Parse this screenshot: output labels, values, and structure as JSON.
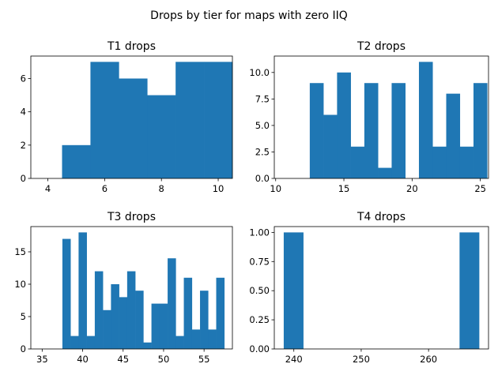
{
  "figure": {
    "suptitle": "Drops by tier for maps with zero IIQ",
    "bar_color": "#1f77b4"
  },
  "chart_data": [
    {
      "type": "bar",
      "title": "T1 drops",
      "xlabel": "",
      "ylabel": "",
      "bin_edges": [
        4.5,
        5.5,
        6.5,
        7.5,
        8.5,
        9.5,
        10.5
      ],
      "values": [
        2,
        7,
        6,
        5,
        7,
        7
      ],
      "xlim": [
        3.4,
        10.5
      ],
      "ylim": [
        0,
        7.35
      ],
      "xticks": [
        4,
        6,
        8,
        10
      ],
      "yticks": [
        0,
        2,
        4,
        6
      ],
      "ytick_labels": [
        "0",
        "2",
        "4",
        "6"
      ],
      "grid": false
    },
    {
      "type": "bar",
      "title": "T2 drops",
      "xlabel": "",
      "ylabel": "",
      "bin_edges": [
        12.5,
        13.5,
        14.5,
        15.5,
        16.5,
        17.5,
        18.5,
        19.5,
        20.5,
        21.5,
        22.5,
        23.5,
        24.5,
        25.5
      ],
      "values": [
        9,
        6,
        10,
        3,
        9,
        1,
        9,
        0,
        11,
        3,
        8,
        3,
        9
      ],
      "xlim": [
        9.9,
        25.6
      ],
      "ylim": [
        0,
        11.55
      ],
      "xticks": [
        10,
        15,
        20,
        25
      ],
      "yticks": [
        0,
        2.5,
        5,
        7.5,
        10
      ],
      "ytick_labels": [
        "0.0",
        "2.5",
        "5.0",
        "7.5",
        "10.0"
      ],
      "grid": false
    },
    {
      "type": "bar",
      "title": "T3 drops",
      "xlabel": "",
      "ylabel": "",
      "bin_edges": [
        37.5,
        38.5,
        39.5,
        40.5,
        41.5,
        42.5,
        43.5,
        44.5,
        45.5,
        46.5,
        47.5,
        48.5,
        49.5,
        50.5,
        51.5,
        52.5,
        53.5,
        54.5,
        55.5,
        56.5,
        57.5
      ],
      "values": [
        17,
        2,
        18,
        2,
        12,
        6,
        10,
        8,
        12,
        9,
        1,
        7,
        7,
        14,
        2,
        11,
        3,
        9,
        3,
        11
      ],
      "xlim": [
        33.6,
        58.5
      ],
      "ylim": [
        0,
        18.9
      ],
      "xticks": [
        35,
        40,
        45,
        50,
        55
      ],
      "yticks": [
        0,
        5,
        10,
        15
      ],
      "ytick_labels": [
        "0",
        "5",
        "10",
        "15"
      ],
      "grid": false
    },
    {
      "type": "bar",
      "title": "T4 drops",
      "xlabel": "",
      "ylabel": "",
      "bin_edges": [
        238.5,
        241.4,
        244.3,
        247.2,
        250.1,
        253,
        255.9,
        258.8,
        261.7,
        264.6,
        267.5
      ],
      "values": [
        1,
        0,
        0,
        0,
        0,
        0,
        0,
        0,
        0,
        1
      ],
      "xlim": [
        237.1,
        268.9
      ],
      "ylim": [
        0,
        1.05
      ],
      "xticks": [
        240,
        250,
        260
      ],
      "yticks": [
        0,
        0.25,
        0.5,
        0.75,
        1
      ],
      "ytick_labels": [
        "0.00",
        "0.25",
        "0.50",
        "0.75",
        "1.00"
      ],
      "grid": false
    }
  ]
}
